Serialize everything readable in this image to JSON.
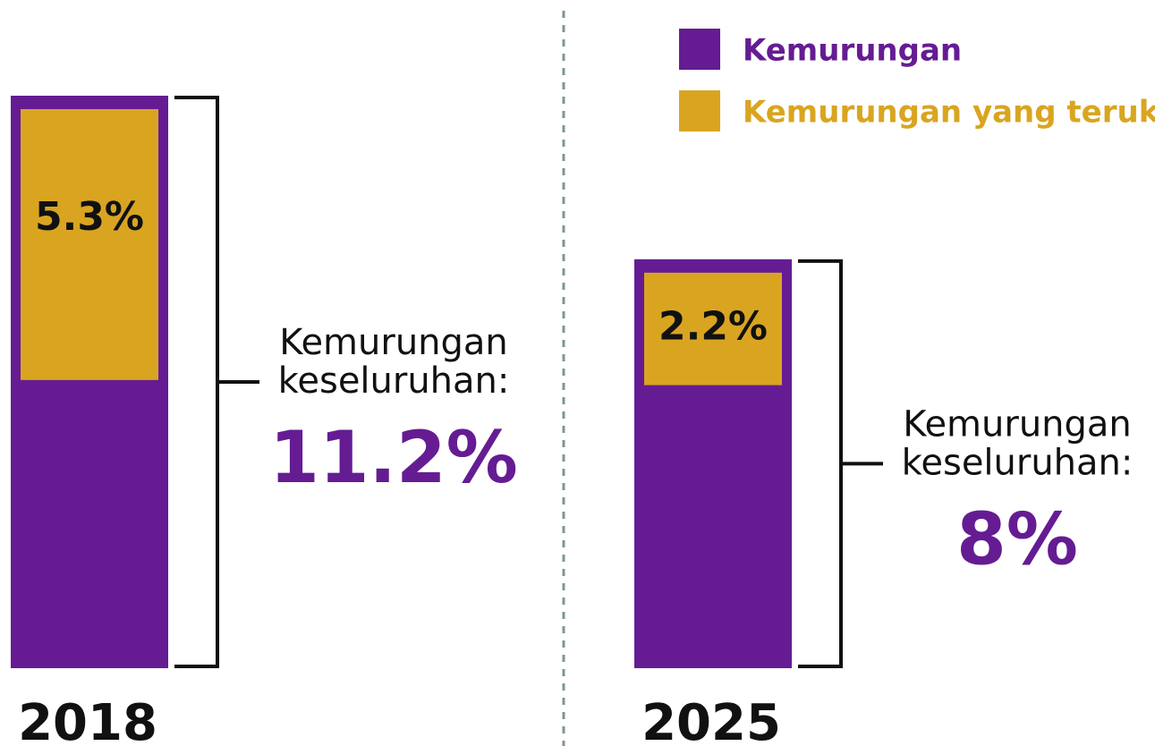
{
  "chart_data": {
    "type": "nested-bar",
    "categories": [
      "2018",
      "2025"
    ],
    "series": [
      {
        "name": "Kemurungan",
        "color": "#651c93",
        "values": [
          11.2,
          8
        ],
        "value_labels": [
          "11.2%",
          "8%"
        ]
      },
      {
        "name": "Kemurungan yang teruk",
        "color": "#d9a521",
        "values": [
          5.3,
          2.2
        ],
        "value_labels": [
          "5.3%",
          "2.2%"
        ]
      }
    ],
    "annotation_lines": [
      "Kemurungan",
      "keseluruhan:"
    ]
  }
}
